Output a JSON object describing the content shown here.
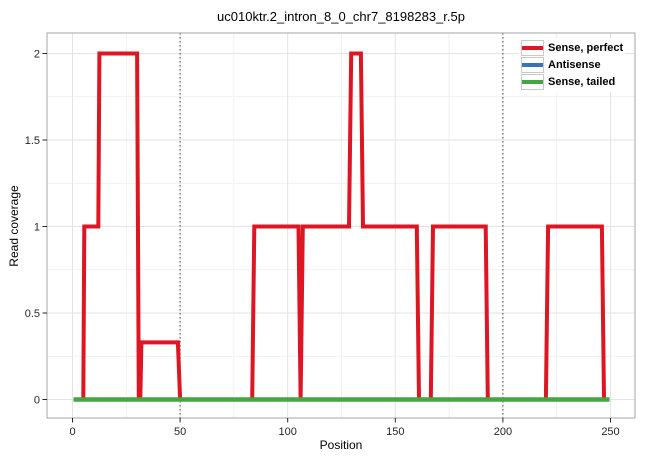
{
  "chart_data": {
    "type": "line",
    "title": "uc010ktr.2_intron_8_0_chr7_8198283_r.5p",
    "xlabel": "Position",
    "ylabel": "Read coverage",
    "xlim": [
      -12,
      261
    ],
    "ylim": [
      -0.11,
      2.12
    ],
    "x_ticks": [
      0,
      50,
      100,
      150,
      200,
      250
    ],
    "y_ticks": [
      0,
      0.5,
      1,
      1.5,
      2
    ],
    "x_minor": [
      25,
      75,
      125,
      175,
      225
    ],
    "y_minor": [
      0.25,
      0.75,
      1.25,
      1.75
    ],
    "vlines": [
      50,
      200
    ],
    "grid": true,
    "legend_position": "top-right-inside",
    "series": [
      {
        "name": "Sense, perfect",
        "color": "#DE1523",
        "width": 4,
        "points": [
          [
            0.5,
            0
          ],
          [
            5,
            0
          ],
          [
            5.5,
            1
          ],
          [
            12,
            1
          ],
          [
            12.5,
            2
          ],
          [
            30,
            2
          ],
          [
            30.8,
            0
          ],
          [
            31.5,
            0
          ],
          [
            32,
            0.33
          ],
          [
            49,
            0.33
          ],
          [
            50,
            0
          ],
          [
            83.5,
            0
          ],
          [
            84.5,
            1
          ],
          [
            105,
            1
          ],
          [
            106,
            0
          ],
          [
            107,
            1
          ],
          [
            128.5,
            1
          ],
          [
            129.5,
            2
          ],
          [
            134,
            2
          ],
          [
            135,
            1
          ],
          [
            160,
            1
          ],
          [
            161,
            0
          ],
          [
            166.5,
            0
          ],
          [
            167.5,
            1
          ],
          [
            192,
            1
          ],
          [
            193,
            0
          ],
          [
            220,
            0
          ],
          [
            221,
            1
          ],
          [
            246,
            1
          ],
          [
            247,
            0
          ],
          [
            249.5,
            0
          ]
        ]
      },
      {
        "name": "Antisense",
        "color": "#3A72B5",
        "width": 4,
        "points": [
          [
            0.5,
            0
          ],
          [
            249.5,
            0
          ]
        ]
      },
      {
        "name": "Sense, tailed",
        "color": "#44A544",
        "width": 4.5,
        "points": [
          [
            0.5,
            0
          ],
          [
            249.5,
            0
          ]
        ]
      }
    ],
    "legend": [
      {
        "label": "Sense, perfect",
        "color": "#DE1523"
      },
      {
        "label": "Antisense",
        "color": "#3A72B5"
      },
      {
        "label": "Sense, tailed",
        "color": "#44A544"
      }
    ]
  }
}
